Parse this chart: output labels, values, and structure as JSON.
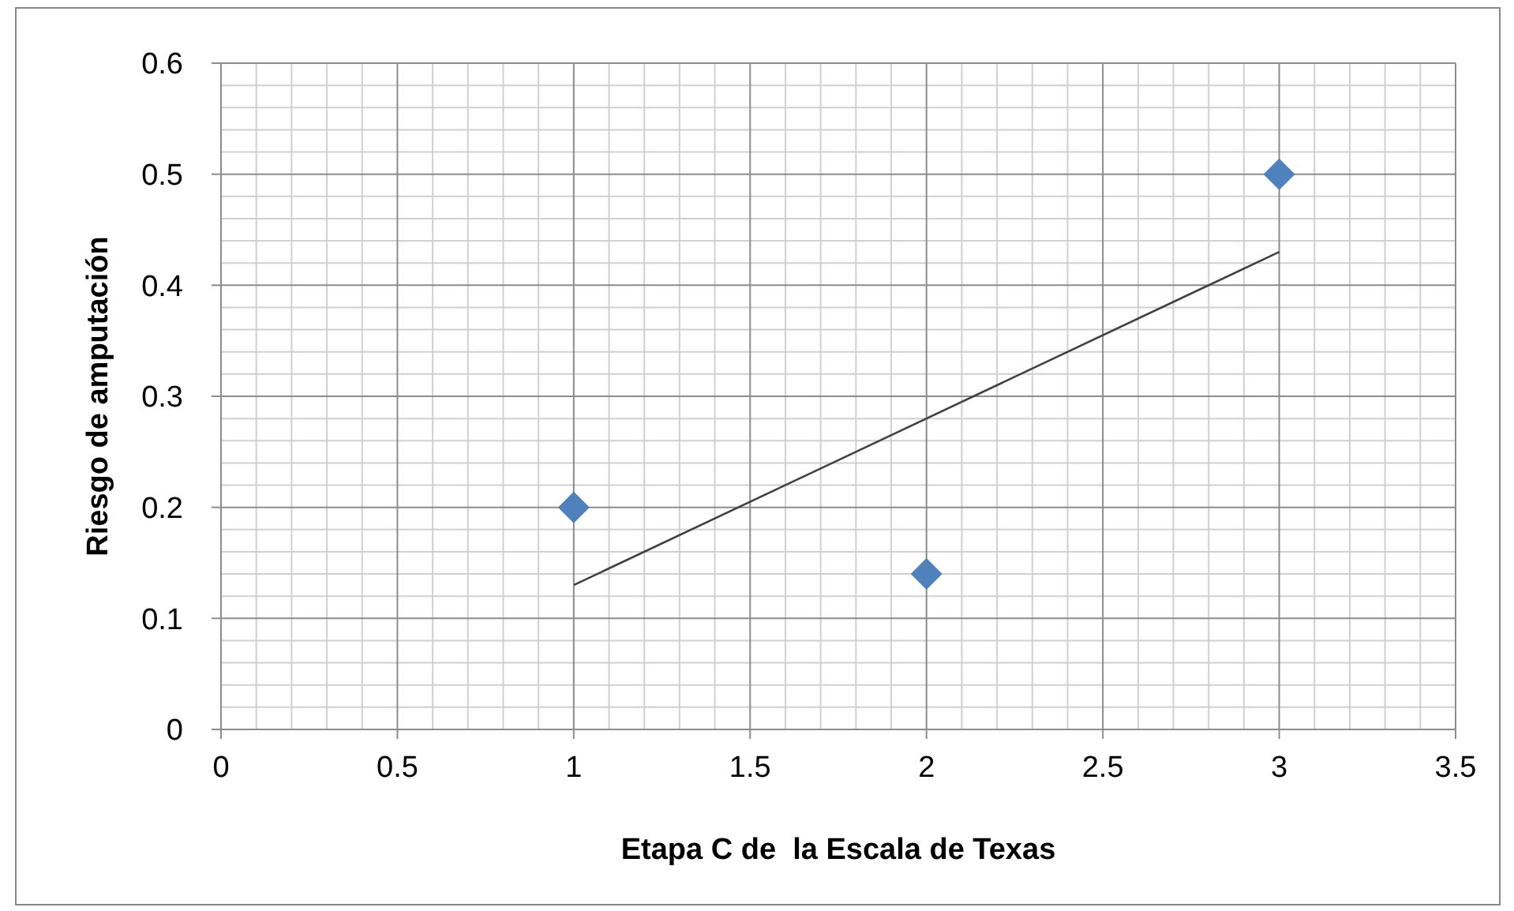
{
  "chart_data": {
    "type": "scatter",
    "xlabel": "Etapa C de  la Escala de Texas",
    "ylabel": "Riesgo de amputación",
    "x": [
      1,
      2,
      3
    ],
    "series": [
      {
        "color": "#4f81bd",
        "marker": "diamond",
        "values": [
          0.2,
          0.14,
          0.5
        ]
      },
      {
        "type": "line",
        "color": "#404040",
        "marker": "none",
        "x": [
          1,
          3
        ],
        "values": [
          0.13,
          0.43
        ]
      }
    ],
    "xlim": [
      0,
      3.5
    ],
    "xticks": [
      0,
      0.5,
      1,
      1.5,
      2,
      2.5,
      3,
      3.5
    ],
    "ylim": [
      0,
      0.6
    ],
    "yticks": [
      0,
      0.1,
      0.2,
      0.3,
      0.4,
      0.5,
      0.6
    ],
    "grid": true
  }
}
